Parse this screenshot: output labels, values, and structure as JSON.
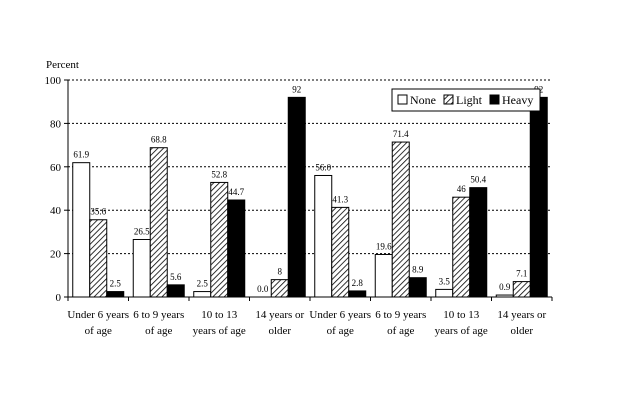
{
  "chart_data": {
    "type": "bar",
    "ylabel": "Percent",
    "ylim": [
      0,
      100
    ],
    "yticks": [
      "0",
      "20",
      "40",
      "60",
      "80",
      "100"
    ],
    "grid": true,
    "legend_position": "top-right",
    "categories": [
      [
        "Under 6 years",
        "of age"
      ],
      [
        "6 to 9 years",
        "of age"
      ],
      [
        "10 to 13",
        "years of age"
      ],
      [
        "14 years or",
        "older"
      ],
      [
        "Under 6 years",
        "of age"
      ],
      [
        "6 to 9 years",
        "of age"
      ],
      [
        "10 to 13",
        "years of age"
      ],
      [
        "14 years or",
        "older"
      ]
    ],
    "series": [
      {
        "name": "None",
        "values": [
          61.9,
          26.5,
          2.5,
          0.0,
          56.0,
          19.6,
          3.5,
          0.9
        ],
        "labels": [
          "61.9",
          "26.5",
          "2.5",
          "0.0",
          "56.0",
          "19.6",
          "3.5",
          "0.9"
        ],
        "style": "white",
        "color": "#ffffff"
      },
      {
        "name": "Light",
        "values": [
          35.6,
          68.8,
          52.8,
          8,
          41.3,
          71.4,
          46,
          7.1
        ],
        "labels": [
          "35.6",
          "68.8",
          "52.8",
          "8",
          "41.3",
          "71.4",
          "46",
          "7.1"
        ],
        "style": "hatch",
        "color": "#000000"
      },
      {
        "name": "Heavy",
        "values": [
          2.5,
          5.6,
          44.7,
          92,
          2.8,
          8.9,
          50.4,
          92
        ],
        "labels": [
          "2.5",
          "5.6",
          "44.7",
          "92",
          "2.8",
          "8.9",
          "50.4",
          "92"
        ],
        "style": "black",
        "color": "#000000"
      }
    ]
  }
}
